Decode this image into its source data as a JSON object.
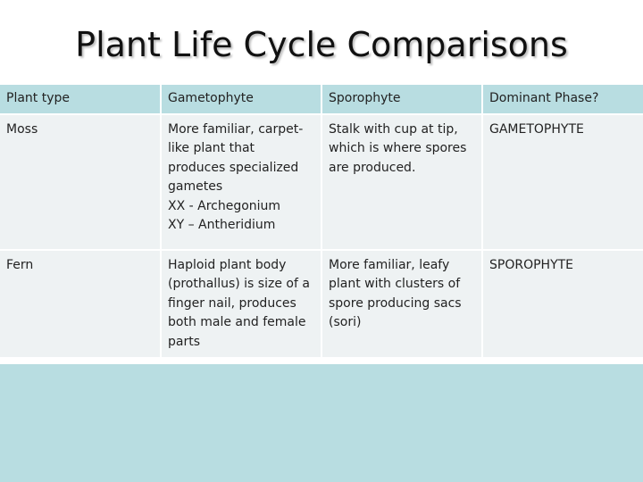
{
  "title": "Plant Life Cycle Comparisons",
  "table": {
    "headers": [
      "Plant type",
      "Gametophyte",
      "Sporophyte",
      "Dominant Phase?"
    ],
    "rows": [
      {
        "plant_type": "Moss",
        "gametophyte": [
          "More familiar, carpet-",
          "like plant that",
          "produces specialized",
          "gametes",
          "XX - Archegonium",
          "XY – Antheridium"
        ],
        "sporophyte": [
          "Stalk with cup at tip,",
          "which is where spores",
          "are produced."
        ],
        "dominant_phase": "GAMETOPHYTE"
      },
      {
        "plant_type": "Fern",
        "gametophyte": [
          "Haploid plant body",
          "(prothallus) is size of a",
          "finger nail,  produces",
          "both male and female",
          "parts"
        ],
        "sporophyte": [
          "More familiar, leafy",
          "plant with clusters of",
          "spore producing sacs",
          "(sori)"
        ],
        "dominant_phase": "SPOROPHYTE"
      }
    ]
  },
  "colors": {
    "header_bg": "#b8dde1",
    "row_bg": "#eef2f3",
    "footer_bg": "#b8dde1",
    "text": "#222222"
  }
}
